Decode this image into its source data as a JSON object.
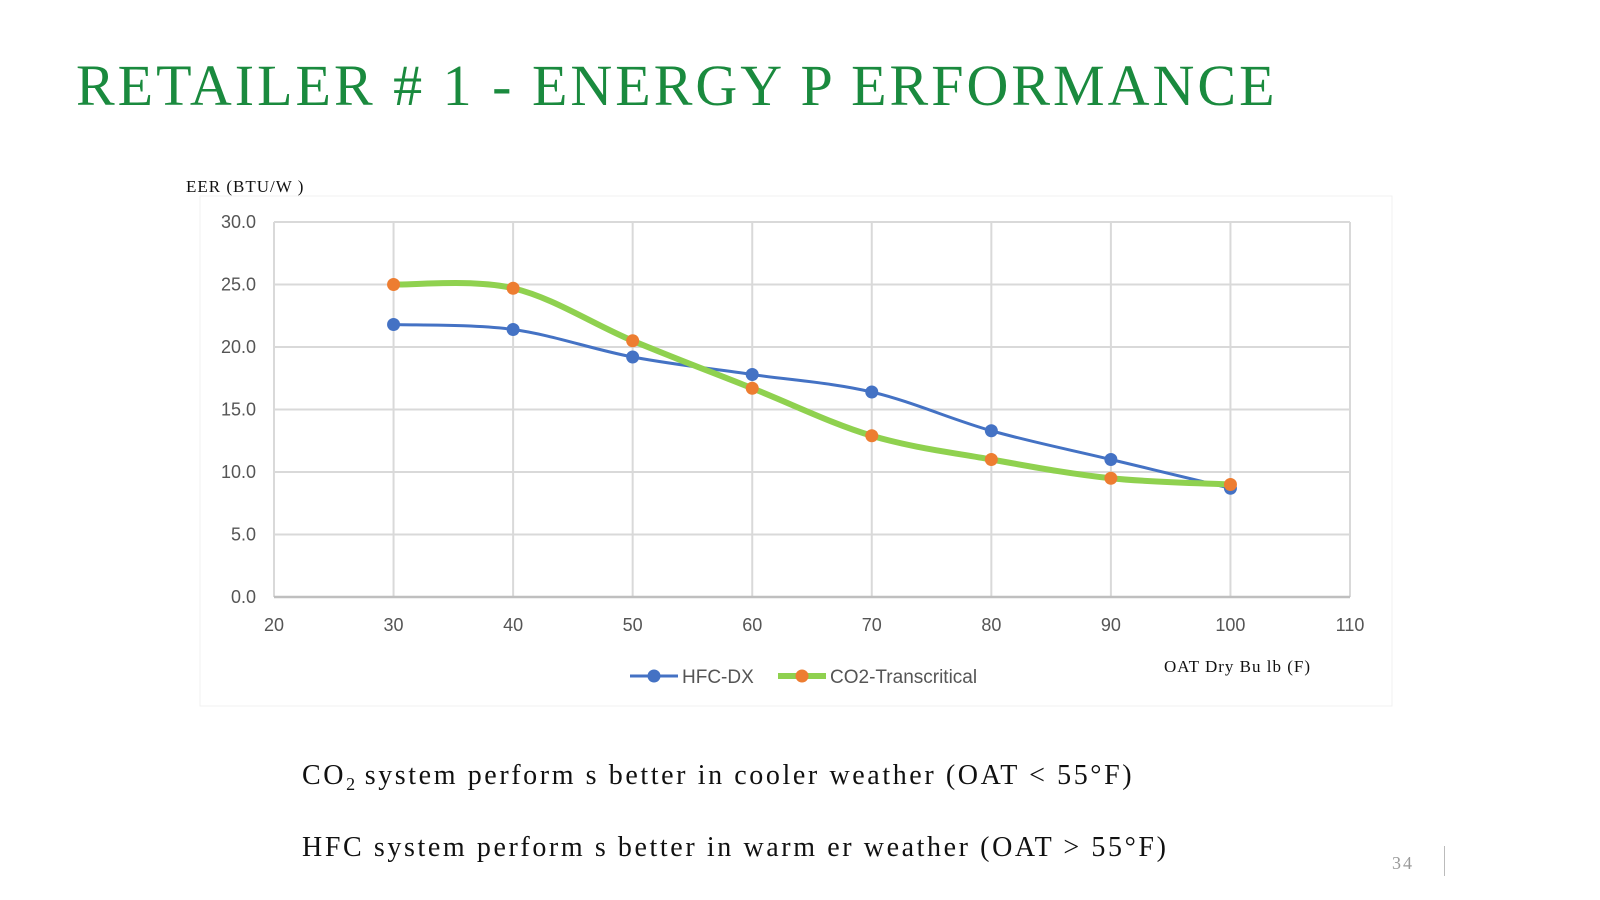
{
  "slide": {
    "title": "RETAILER # 1 - ENERGY P ERFORMANCE",
    "bullets": [
      {
        "prefix": "CO",
        "sub": "2",
        "suffix": " system  perform s better in cooler weather (OAT < 55°F)"
      },
      {
        "prefix": "HFC system  perform s better in warm er weather (OAT > 55°F)",
        "sub": "",
        "suffix": ""
      }
    ],
    "page_number": "34"
  },
  "colors": {
    "title": "#1a8a3e",
    "grid": "#d9d9d9",
    "hfc_line": "#4472c4",
    "hfc_marker": "#4472c4",
    "co2_line": "#8fd14f",
    "co2_marker": "#ed7d31"
  },
  "chart_data": {
    "type": "line",
    "title": "",
    "ylabel": "EER (BTU/W )",
    "xlabel": "OAT Dry Bu lb  (F)",
    "xlim": [
      20,
      110
    ],
    "ylim": [
      0,
      30
    ],
    "x_ticks": [
      20,
      30,
      40,
      50,
      60,
      70,
      80,
      90,
      100,
      110
    ],
    "y_ticks": [
      "0.0",
      "5.0",
      "10.0",
      "15.0",
      "20.0",
      "25.0",
      "30.0"
    ],
    "y_tick_values": [
      0,
      5,
      10,
      15,
      20,
      25,
      30
    ],
    "grid": true,
    "legend_position": "bottom",
    "x": [
      30,
      40,
      50,
      60,
      70,
      80,
      90,
      100
    ],
    "series": [
      {
        "name": "HFC-DX",
        "values": [
          21.8,
          21.4,
          19.2,
          17.8,
          16.4,
          13.3,
          11.0,
          8.7
        ]
      },
      {
        "name": "CO2-Transcritical",
        "values": [
          25.0,
          24.7,
          20.5,
          16.7,
          12.9,
          11.0,
          9.5,
          9.0
        ]
      }
    ]
  }
}
